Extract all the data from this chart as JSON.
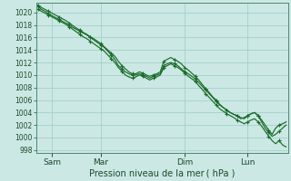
{
  "xlabel": "Pression niveau de la mer ( hPa )",
  "background_color": "#cce8e4",
  "grid_color": "#99ccc6",
  "line_color": "#1a6b2a",
  "spine_color": "#4a8a70",
  "tick_color": "#1a4a2a",
  "ylim": [
    997.5,
    1021.5
  ],
  "yticks": [
    998,
    1000,
    1002,
    1004,
    1006,
    1008,
    1010,
    1012,
    1014,
    1016,
    1018,
    1020
  ],
  "ytick_fontsize": 5.5,
  "xtick_fontsize": 6.5,
  "xlabel_fontsize": 7.0,
  "xtick_positions": [
    4,
    18,
    42,
    60
  ],
  "xtick_labels": [
    "Sam",
    "Mar",
    "Dim",
    "Lun"
  ],
  "total_points": 72,
  "line1": [
    1021.0,
    1020.5,
    1020.2,
    1019.8,
    1019.5,
    1019.2,
    1018.9,
    1018.6,
    1018.3,
    1018.0,
    1017.6,
    1017.3,
    1017.0,
    1016.7,
    1016.4,
    1016.0,
    1015.6,
    1015.2,
    1014.8,
    1014.4,
    1013.8,
    1013.2,
    1012.5,
    1011.5,
    1011.0,
    1010.5,
    1010.2,
    1010.0,
    1010.0,
    1010.2,
    1010.0,
    1009.8,
    1009.5,
    1009.8,
    1010.0,
    1010.2,
    1011.5,
    1011.8,
    1012.0,
    1011.8,
    1011.5,
    1011.0,
    1010.5,
    1010.2,
    1009.8,
    1009.4,
    1008.8,
    1008.2,
    1007.6,
    1007.0,
    1006.4,
    1005.8,
    1005.2,
    1004.8,
    1004.4,
    1004.0,
    1003.7,
    1003.5,
    1003.2,
    1003.0,
    1003.5,
    1003.8,
    1004.0,
    1003.5,
    1002.5,
    1001.5,
    1000.8,
    1000.2,
    1000.5,
    1001.0,
    1001.5,
    1002.0
  ],
  "line2": [
    1021.2,
    1020.8,
    1020.5,
    1020.2,
    1019.9,
    1019.6,
    1019.3,
    1019.0,
    1018.7,
    1018.3,
    1017.9,
    1017.5,
    1017.2,
    1016.8,
    1016.5,
    1016.1,
    1015.8,
    1015.4,
    1015.0,
    1014.5,
    1014.0,
    1013.5,
    1013.0,
    1012.2,
    1011.5,
    1011.0,
    1010.5,
    1010.2,
    1010.2,
    1010.5,
    1010.3,
    1010.0,
    1009.8,
    1010.0,
    1010.2,
    1010.5,
    1012.2,
    1012.5,
    1012.8,
    1012.5,
    1012.2,
    1011.8,
    1011.2,
    1010.8,
    1010.3,
    1009.8,
    1009.2,
    1008.5,
    1007.8,
    1007.2,
    1006.5,
    1006.0,
    1005.3,
    1004.8,
    1004.4,
    1004.0,
    1003.7,
    1003.5,
    1003.0,
    1003.2,
    1003.5,
    1003.8,
    1004.0,
    1003.5,
    1002.8,
    1002.0,
    1001.2,
    1000.5,
    1001.5,
    1002.0,
    1002.2,
    1002.5
  ],
  "line3": [
    1020.5,
    1020.2,
    1019.9,
    1019.6,
    1019.3,
    1019.0,
    1018.7,
    1018.4,
    1018.1,
    1017.7,
    1017.3,
    1016.9,
    1016.5,
    1016.1,
    1015.8,
    1015.4,
    1015.0,
    1014.6,
    1014.2,
    1013.8,
    1013.2,
    1012.6,
    1012.0,
    1011.2,
    1010.6,
    1010.0,
    1009.7,
    1009.5,
    1009.7,
    1010.0,
    1009.8,
    1009.5,
    1009.2,
    1009.5,
    1009.7,
    1010.0,
    1011.2,
    1011.5,
    1011.8,
    1011.5,
    1011.2,
    1010.8,
    1010.3,
    1009.8,
    1009.4,
    1009.0,
    1008.3,
    1007.7,
    1007.0,
    1006.4,
    1005.8,
    1005.2,
    1004.6,
    1004.2,
    1003.8,
    1003.5,
    1003.2,
    1002.8,
    1002.5,
    1002.2,
    1002.5,
    1002.8,
    1003.0,
    1002.5,
    1001.8,
    1001.0,
    1000.2,
    999.5,
    999.0,
    999.5,
    998.8,
    998.5
  ]
}
